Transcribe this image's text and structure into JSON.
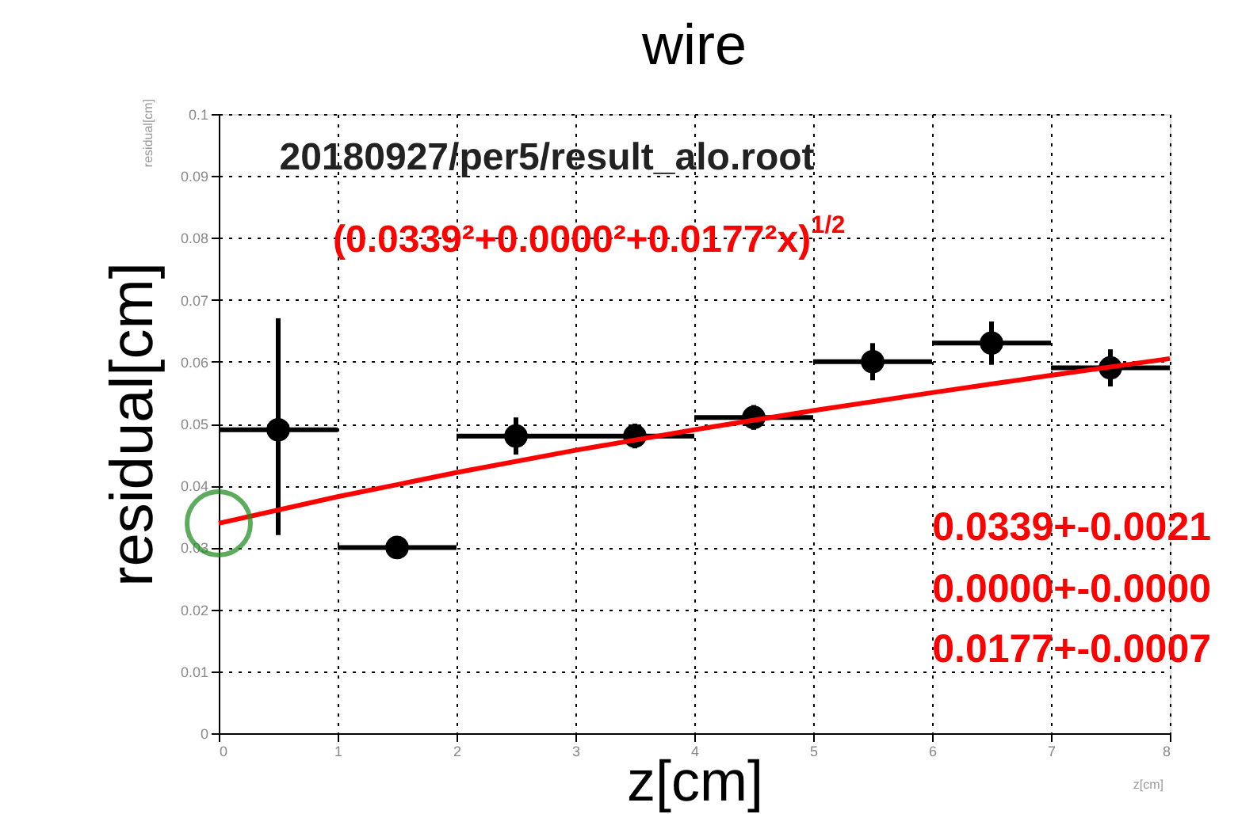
{
  "chart_data": {
    "type": "scatter",
    "title": "wire",
    "xlabel": "z[cm]",
    "ylabel": "residual[cm]",
    "x": [
      0.5,
      1.5,
      2.5,
      3.5,
      4.5,
      5.5,
      6.5,
      7.5
    ],
    "series": [
      {
        "color": "#000000",
        "values": [
          0.049,
          0.03,
          0.048,
          0.048,
          0.051,
          0.06,
          0.063,
          0.059
        ],
        "errors": [
          [
            0.032,
            0.067
          ],
          0.001,
          0.003,
          0.002,
          0.002,
          0.003,
          0.0035,
          0.003
        ],
        "xerrors": [
          0.5,
          0.5,
          0.5,
          0.5,
          0.5,
          0.5,
          0.5,
          0.5
        ],
        "marker": "circle"
      },
      {
        "type": "line",
        "color": "#ff0000",
        "x": [
          0,
          1,
          2,
          3,
          4,
          5,
          6,
          7,
          8
        ],
        "values": [
          0.0339,
          0.0382,
          0.0421,
          0.0457,
          0.049,
          0.0521,
          0.055,
          0.0578,
          0.0605
        ],
        "line_style": "solid"
      }
    ],
    "xlim": [
      0,
      8
    ],
    "xticks": [
      0,
      1,
      2,
      3,
      4,
      5,
      6,
      7,
      8
    ],
    "ylim": [
      0,
      0.1
    ],
    "yticks": [
      0,
      0.01,
      0.02,
      0.03,
      0.04,
      0.05,
      0.06,
      0.07,
      0.08,
      0.09,
      0.1
    ],
    "grid": true,
    "annotations": [
      "20180927/per5/result_alo.root",
      "(0.0339²+0.0000²+0.0177²x)$^{1/2}$",
      "0.0339+-0.0021",
      "0.0000+-0.0000",
      "0.0177+-0.0007",
      "residual[cm]",
      "z[cm]"
    ]
  }
}
